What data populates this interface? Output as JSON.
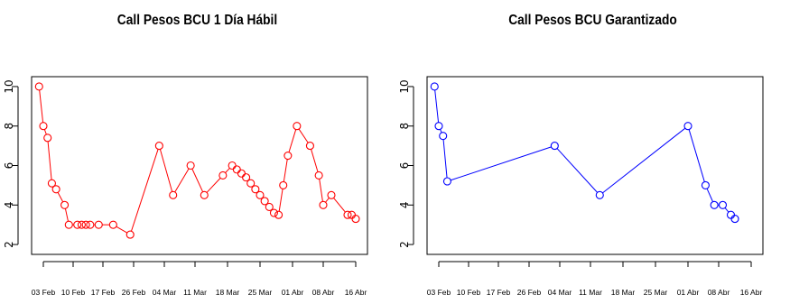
{
  "chart_data": [
    {
      "type": "line",
      "title": "Call Pesos BCU 1 Día Hábil",
      "xlabel": "",
      "ylabel": "",
      "color": "#ff0000",
      "x_ticks": [
        "03 Feb",
        "10 Feb",
        "17 Feb",
        "26 Feb",
        "04 Mar",
        "11 Mar",
        "18 Mar",
        "25 Mar",
        "01 Abr",
        "08 Abr",
        "16 Abr"
      ],
      "y_ticks": [
        2,
        4,
        6,
        8,
        10
      ],
      "ylim": [
        1.5,
        10.5
      ],
      "grid": false,
      "series": [
        {
          "x": [
            "02 Feb",
            "03 Feb",
            "04 Feb",
            "05 Feb",
            "06 Feb",
            "08 Feb",
            "09 Feb",
            "11 Feb",
            "12 Feb",
            "13 Feb",
            "14 Feb",
            "16 Feb",
            "20 Feb",
            "25 Feb",
            "03 Mar",
            "06 Mar",
            "10 Mar",
            "13 Mar",
            "17 Mar",
            "19 Mar",
            "20 Mar",
            "21 Mar",
            "22 Mar",
            "23 Mar",
            "24 Mar",
            "25 Mar",
            "26 Mar",
            "27 Mar",
            "28 Mar",
            "29 Mar",
            "30 Mar",
            "31 Mar",
            "02 Apr",
            "05 Apr",
            "07 Apr",
            "08 Apr",
            "10 Apr",
            "14 Apr",
            "15 Apr",
            "16 Apr"
          ],
          "values": [
            10,
            8,
            7.4,
            5.1,
            4.8,
            4.0,
            3.0,
            3.0,
            3.0,
            3.0,
            3.0,
            3.0,
            3.0,
            2.5,
            7.0,
            4.5,
            6.0,
            4.5,
            5.5,
            6.0,
            5.8,
            5.6,
            5.4,
            5.1,
            4.8,
            4.5,
            4.2,
            3.9,
            3.6,
            3.5,
            5.0,
            6.5,
            8.0,
            7.0,
            5.5,
            4.0,
            4.5,
            3.5,
            3.5,
            3.3
          ]
        }
      ]
    },
    {
      "type": "line",
      "title": "Call Pesos BCU Garantizado",
      "xlabel": "",
      "ylabel": "",
      "color": "#0000ff",
      "x_ticks": [
        "03 Feb",
        "10 Feb",
        "17 Feb",
        "26 Feb",
        "04 Mar",
        "11 Mar",
        "18 Mar",
        "25 Mar",
        "01 Abr",
        "08 Abr",
        "16 Abr"
      ],
      "y_ticks": [
        2,
        4,
        6,
        8,
        10
      ],
      "ylim": [
        1.5,
        10.5
      ],
      "grid": false,
      "series": [
        {
          "x": [
            "02 Feb",
            "03 Feb",
            "04 Feb",
            "05 Feb",
            "03 Mar",
            "13 Mar",
            "01 Apr",
            "05 Apr",
            "07 Apr",
            "09 Apr",
            "11 Apr",
            "12 Apr"
          ],
          "values": [
            10,
            8,
            7.5,
            5.2,
            7.0,
            4.5,
            8.0,
            5.0,
            4.0,
            4.0,
            3.5,
            3.3
          ]
        }
      ]
    }
  ]
}
